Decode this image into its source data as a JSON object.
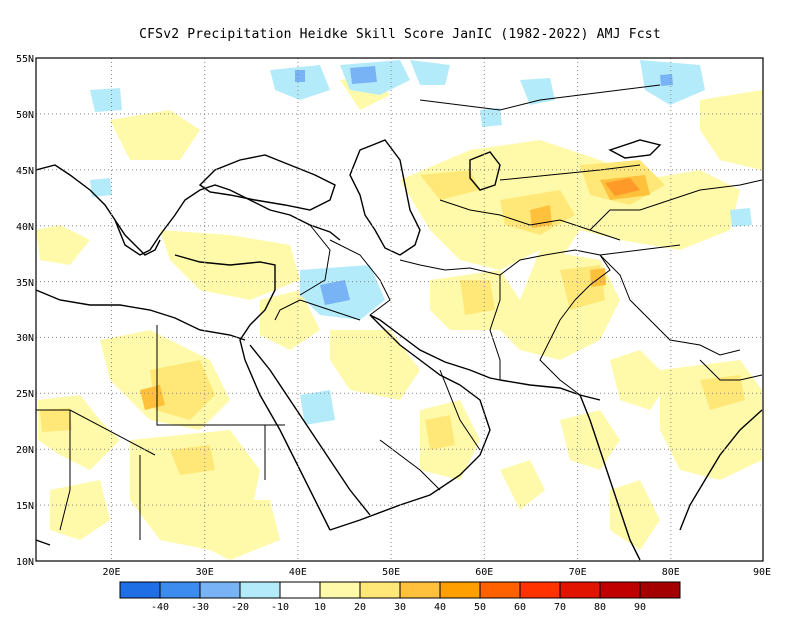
{
  "title": "CFSv2  Precipitation Heidke Skill Score JanIC (1982-2022) AMJ Fcst",
  "map": {
    "lat_labels": [
      "55N",
      "50N",
      "45N",
      "40N",
      "35N",
      "30N",
      "25N",
      "20N",
      "15N",
      "10N"
    ],
    "lon_labels": [
      "20E",
      "30E",
      "40E",
      "50E",
      "60E",
      "70E",
      "80E",
      "90E"
    ],
    "lon_range": [
      12,
      90
    ],
    "lat_range": [
      10,
      55
    ],
    "grid": "dotted"
  },
  "colorbar": {
    "labels": [
      "-40",
      "-30",
      "-20",
      "-10",
      "10",
      "20",
      "30",
      "40",
      "50",
      "60",
      "70",
      "80",
      "90"
    ],
    "colors": [
      "#1e6ee6",
      "#3c8cf0",
      "#78b4f5",
      "#b4ebfa",
      "#ffffff",
      "#fffaaa",
      "#ffe878",
      "#ffc03c",
      "#ffa000",
      "#ff6000",
      "#ff3200",
      "#e11400",
      "#c00000",
      "#a50000"
    ]
  },
  "legend_colors": {
    "land_outline": "#000000",
    "positive": "#ffe878",
    "negative": "#b4ebfa"
  }
}
